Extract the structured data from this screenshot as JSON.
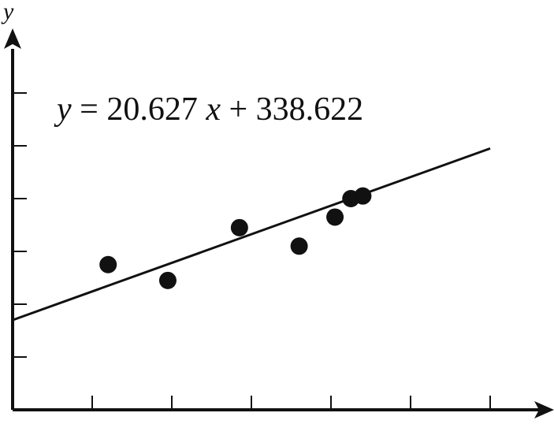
{
  "chart_data": {
    "type": "scatter",
    "title": "",
    "xlabel": "",
    "ylabel": "y",
    "annotation": {
      "equation": "= 20.627",
      "eq_y": "y",
      "eq_x": "x",
      "eq_tail": " + 338.622"
    },
    "xlim": [
      0,
      6
    ],
    "ylim": [
      0,
      7
    ],
    "x_ticks": [
      1,
      2,
      3,
      4,
      5,
      6
    ],
    "y_ticks": [
      1,
      2,
      3,
      4,
      5,
      6
    ],
    "grid": false,
    "points": [
      {
        "x": 1.2,
        "y": 2.75
      },
      {
        "x": 1.95,
        "y": 2.45
      },
      {
        "x": 2.85,
        "y": 3.45
      },
      {
        "x": 3.6,
        "y": 3.1
      },
      {
        "x": 4.05,
        "y": 3.65
      },
      {
        "x": 4.25,
        "y": 4.0
      },
      {
        "x": 4.4,
        "y": 4.05
      }
    ],
    "trendline": {
      "x0": 0,
      "y0": 1.7,
      "x1": 6.0,
      "y1": 4.95
    }
  }
}
